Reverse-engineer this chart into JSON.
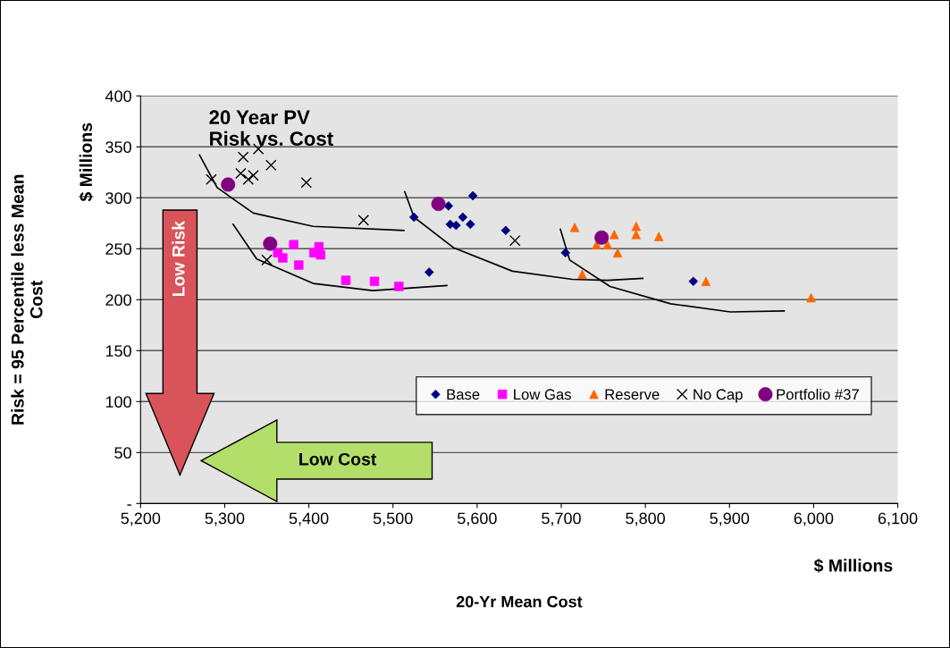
{
  "chart_data": {
    "type": "scatter",
    "title": "20 Year PV\nRisk vs. Cost",
    "xlabel": "20-Yr Mean Cost",
    "ylabel": "Risk = 95 Percentile less Mean\nCost",
    "xlim": [
      5200,
      6100
    ],
    "xticks": [
      {
        "value": 5200,
        "label": "5,200"
      },
      {
        "value": 5300,
        "label": "5,300"
      },
      {
        "value": 5400,
        "label": "5,400"
      },
      {
        "value": 5500,
        "label": "5,500"
      },
      {
        "value": 5600,
        "label": "5,600"
      },
      {
        "value": 5700,
        "label": "5,700"
      },
      {
        "value": 5800,
        "label": "5,800"
      },
      {
        "value": 5900,
        "label": "5,900"
      },
      {
        "value": 6000,
        "label": "6,000"
      },
      {
        "value": 6100,
        "label": "6,100"
      }
    ],
    "ylim": [
      0,
      400
    ],
    "yticks": [
      {
        "value": 0,
        "label": "-"
      },
      50,
      100,
      150,
      200,
      250,
      300,
      350,
      400
    ],
    "grid": "y",
    "legend": "lower right",
    "annotations": [
      "$ Millions",
      "$ Millions",
      "Low Risk",
      "Low Cost"
    ],
    "series": [
      {
        "name": "Base",
        "color": "#000080",
        "marker": "diamond",
        "x": [
          5525,
          5566,
          5595,
          5583,
          5568,
          5575,
          5592,
          5634,
          5705,
          5543,
          5857
        ],
        "values": [
          281,
          292,
          302,
          281,
          274,
          273,
          274,
          268,
          246,
          227,
          218
        ]
      },
      {
        "name": "Low Gas",
        "color": "#ff00ff",
        "marker": "square",
        "x": [
          5363,
          5369,
          5382,
          5388,
          5406,
          5412,
          5414,
          5444,
          5478,
          5507
        ],
        "values": [
          246,
          241,
          254,
          234,
          246,
          252,
          244,
          219,
          218,
          213
        ]
      },
      {
        "name": "Reserve",
        "color": "#ff6600",
        "marker": "triangle",
        "x": [
          5716,
          5763,
          5789,
          5789,
          5816,
          5742,
          5755,
          5767,
          5725,
          5872,
          5997
        ],
        "values": [
          271,
          264,
          272,
          264,
          262,
          254,
          254,
          246,
          225,
          218,
          202
        ]
      },
      {
        "name": "No Cap",
        "color": "#000000",
        "marker": "cross",
        "x": [
          5284,
          5322,
          5340,
          5355,
          5319,
          5328,
          5334,
          5397,
          5465,
          5350,
          5645
        ],
        "values": [
          318,
          340,
          348,
          332,
          324,
          318,
          322,
          315,
          278,
          239,
          258
        ]
      },
      {
        "name": "Portfolio #37",
        "color": "#800080",
        "marker": "circle",
        "x": [
          5304,
          5354,
          5554,
          5748
        ],
        "values": [
          313,
          255,
          294,
          261
        ]
      },
      {
        "type": "line",
        "color": "#000000",
        "marker": "none",
        "x": [
          5270,
          5291,
          5334,
          5405,
          5513
        ],
        "values": [
          342,
          310,
          285,
          272,
          268
        ]
      },
      {
        "type": "line",
        "color": "#000000",
        "marker": "none",
        "x": [
          5310,
          5338,
          5405,
          5476,
          5564
        ],
        "values": [
          274,
          240,
          216,
          209,
          214
        ]
      },
      {
        "type": "line",
        "color": "#000000",
        "marker": "none",
        "x": [
          5514,
          5525,
          5572,
          5642,
          5713,
          5755,
          5797
        ],
        "values": [
          306,
          281,
          251,
          228,
          220,
          219,
          221
        ]
      },
      {
        "type": "line",
        "color": "#000000",
        "marker": "none",
        "x": [
          5699,
          5710,
          5758,
          5830,
          5901,
          5965
        ],
        "values": [
          269,
          239,
          213,
          196,
          188,
          189
        ]
      }
    ]
  }
}
